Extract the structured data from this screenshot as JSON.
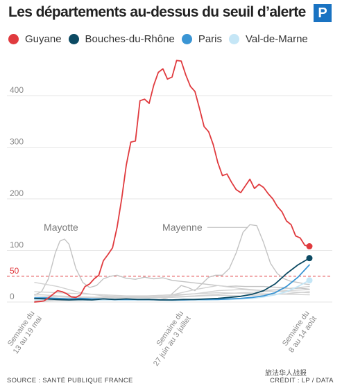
{
  "header": {
    "title": "Les départements au-dessus du seuil d’alerte",
    "logo_letter": "P"
  },
  "legend": [
    {
      "name": "Guyane",
      "color": "#e03a3e"
    },
    {
      "name": "Bouches-du-Rhône",
      "color": "#0c4a63"
    },
    {
      "name": "Paris",
      "color": "#3a95d4"
    },
    {
      "name": "Val-de-Marne",
      "color": "#c5e6f6"
    }
  ],
  "footer": {
    "source": "SOURCE : SANTÉ PUBLIQUE FRANCE",
    "credit": "CRÉDIT : LP / DATA",
    "watermark": "旅法华人战报"
  },
  "chart_data": {
    "type": "line",
    "title": "Les départements au-dessus du seuil d’alerte",
    "xlabel": "",
    "ylabel": "",
    "x_domain": [
      0,
      13
    ],
    "ylim": [
      0,
      470
    ],
    "y_ticks": [
      0,
      50,
      100,
      200,
      300,
      400
    ],
    "x_ticks": [
      {
        "x": 0,
        "label": [
          "Semaine du",
          "13 au 19 mai"
        ]
      },
      {
        "x": 6.5,
        "label": [
          "Semaine du",
          "27 juin au 3 juillet"
        ]
      },
      {
        "x": 12,
        "label": [
          "Semaine du",
          "8 au 14 août"
        ]
      }
    ],
    "threshold": {
      "value": 50,
      "style": "dashed",
      "color": "#e03a3e"
    },
    "grid": true,
    "legend_position": "top",
    "annotations": [
      {
        "text": "Mayotte",
        "x": 1.15,
        "y": 138
      },
      {
        "text": "Mayenne",
        "x": 6.45,
        "y": 138
      }
    ],
    "series": [
      {
        "name": "Guyane",
        "color": "#e03a3e",
        "endpoint": true,
        "x": [
          0,
          0.2,
          0.4,
          0.6,
          0.8,
          1,
          1.2,
          1.4,
          1.6,
          1.8,
          2,
          2.2,
          2.4,
          2.6,
          2.8,
          3,
          3.2,
          3.4,
          3.6,
          3.8,
          4,
          4.2,
          4.4,
          4.6,
          4.8,
          5,
          5.2,
          5.4,
          5.6,
          5.8,
          6,
          6.2,
          6.4,
          6.6,
          6.8,
          7,
          7.2,
          7.4,
          7.6,
          7.8,
          8,
          8.2,
          8.4,
          8.6,
          8.8,
          9,
          9.2,
          9.4,
          9.6,
          9.8,
          10,
          10.2,
          10.4,
          10.6,
          10.8,
          11,
          11.2,
          11.4,
          11.6,
          11.8,
          12
        ],
        "y": [
          0,
          1,
          2,
          8,
          15,
          22,
          20,
          16,
          10,
          9,
          14,
          30,
          35,
          45,
          52,
          80,
          92,
          105,
          145,
          200,
          265,
          310,
          312,
          390,
          393,
          385,
          420,
          445,
          452,
          432,
          436,
          468,
          467,
          440,
          418,
          408,
          375,
          340,
          330,
          305,
          270,
          245,
          248,
          232,
          218,
          212,
          225,
          238,
          220,
          228,
          222,
          210,
          200,
          185,
          175,
          157,
          150,
          128,
          124,
          110,
          108
        ]
      },
      {
        "name": "Bouches-du-Rhône",
        "color": "#0c4a63",
        "endpoint": true,
        "x": [
          0,
          0.5,
          1,
          1.5,
          2,
          2.5,
          3,
          3.5,
          4,
          4.5,
          5,
          5.5,
          6,
          6.5,
          7,
          7.5,
          8,
          8.5,
          9,
          9.5,
          10,
          10.5,
          11,
          11.5,
          12
        ],
        "y": [
          7,
          6,
          5,
          4,
          5,
          4,
          6,
          5,
          6,
          5,
          5,
          4,
          4,
          5,
          5,
          6,
          7,
          9,
          11,
          15,
          22,
          35,
          55,
          72,
          85
        ]
      },
      {
        "name": "Paris",
        "color": "#3a95d4",
        "endpoint": false,
        "x": [
          0,
          0.5,
          1,
          1.5,
          2,
          2.5,
          3,
          3.5,
          4,
          4.5,
          5,
          5.5,
          6,
          6.5,
          7,
          7.5,
          8,
          8.5,
          9,
          9.5,
          10,
          10.5,
          11,
          11.5,
          12
        ],
        "y": [
          8,
          8,
          7,
          6,
          7,
          6,
          6,
          5,
          5,
          5,
          5,
          4,
          4,
          4,
          5,
          5,
          5,
          6,
          7,
          9,
          12,
          18,
          30,
          48,
          72
        ]
      },
      {
        "name": "Val-de-Marne",
        "color": "#c5e6f6",
        "endpoint": true,
        "x": [
          0,
          0.5,
          1,
          1.5,
          2,
          2.5,
          3,
          3.5,
          4,
          4.5,
          5,
          5.5,
          6,
          6.5,
          7,
          7.5,
          8,
          8.5,
          9,
          9.5,
          10,
          10.5,
          11,
          11.5,
          12
        ],
        "y": [
          5,
          5,
          5,
          4,
          4,
          4,
          4,
          4,
          4,
          4,
          4,
          4,
          3,
          4,
          4,
          4,
          5,
          5,
          6,
          7,
          10,
          14,
          20,
          30,
          42
        ]
      },
      {
        "name": "Mayotte",
        "color": "#c3c3c3",
        "endpoint": false,
        "x": [
          0,
          0.3,
          0.6,
          0.9,
          1.1,
          1.3,
          1.5,
          1.8,
          2.1,
          2.4,
          2.7,
          3,
          3.3,
          3.6,
          4,
          4.4,
          4.8,
          5.2,
          5.6,
          6,
          6.4,
          6.8,
          7.2,
          7.6,
          8,
          8.4,
          8.8,
          9.2,
          9.6,
          10,
          10.4,
          10.8,
          11.2,
          11.6,
          12
        ],
        "y": [
          14,
          20,
          45,
          95,
          118,
          122,
          112,
          65,
          38,
          28,
          32,
          45,
          50,
          52,
          46,
          44,
          48,
          45,
          47,
          42,
          40,
          38,
          36,
          34,
          32,
          30,
          31,
          30,
          30,
          30,
          29,
          28,
          26,
          27,
          25
        ]
      },
      {
        "name": "Mayenne",
        "color": "#c3c3c3",
        "endpoint": false,
        "x": [
          0,
          0.5,
          1,
          1.5,
          2,
          2.5,
          3,
          3.5,
          4,
          4.5,
          5,
          5.5,
          5.8,
          6.1,
          6.4,
          6.7,
          7,
          7.3,
          7.6,
          7.9,
          8.2,
          8.5,
          8.8,
          9.1,
          9.4,
          9.7,
          10,
          10.3,
          10.6,
          10.9,
          11.2,
          11.5,
          11.8,
          12
        ],
        "y": [
          2,
          2,
          3,
          3,
          3,
          4,
          4,
          4,
          5,
          5,
          5,
          5,
          8,
          20,
          32,
          28,
          22,
          35,
          48,
          52,
          52,
          65,
          95,
          135,
          150,
          148,
          115,
          75,
          55,
          45,
          40,
          38,
          35,
          34
        ]
      },
      {
        "name": "",
        "color": "#d2d2d2",
        "endpoint": false,
        "x": [
          0,
          1,
          2,
          3,
          4,
          5,
          6,
          7,
          8,
          9,
          10,
          11,
          12
        ],
        "y": [
          38,
          30,
          18,
          12,
          10,
          10,
          12,
          16,
          22,
          24,
          22,
          20,
          18
        ]
      },
      {
        "name": "",
        "color": "#d2d2d2",
        "endpoint": false,
        "x": [
          0,
          1,
          2,
          3,
          4,
          5,
          6,
          7,
          8,
          9,
          10,
          11,
          12
        ],
        "y": [
          20,
          18,
          16,
          14,
          12,
          12,
          14,
          24,
          32,
          26,
          22,
          26,
          30
        ]
      },
      {
        "name": "",
        "color": "#d2d2d2",
        "endpoint": false,
        "x": [
          0,
          1,
          2,
          3,
          4,
          5,
          6,
          7,
          8,
          9,
          10,
          11,
          12
        ],
        "y": [
          12,
          10,
          9,
          8,
          8,
          9,
          10,
          12,
          15,
          18,
          20,
          22,
          24
        ]
      },
      {
        "name": "",
        "color": "#d2d2d2",
        "endpoint": false,
        "x": [
          0,
          1,
          2,
          3,
          4,
          5,
          6,
          7,
          8,
          9,
          10,
          11,
          12
        ],
        "y": [
          6,
          7,
          8,
          10,
          9,
          8,
          9,
          11,
          13,
          12,
          14,
          16,
          20
        ]
      },
      {
        "name": "",
        "color": "#d2d2d2",
        "endpoint": false,
        "x": [
          0,
          1,
          2,
          3,
          4,
          5,
          6,
          7,
          8,
          9,
          10,
          11,
          12
        ],
        "y": [
          15,
          12,
          10,
          9,
          10,
          12,
          14,
          16,
          18,
          17,
          16,
          15,
          14
        ]
      }
    ]
  }
}
